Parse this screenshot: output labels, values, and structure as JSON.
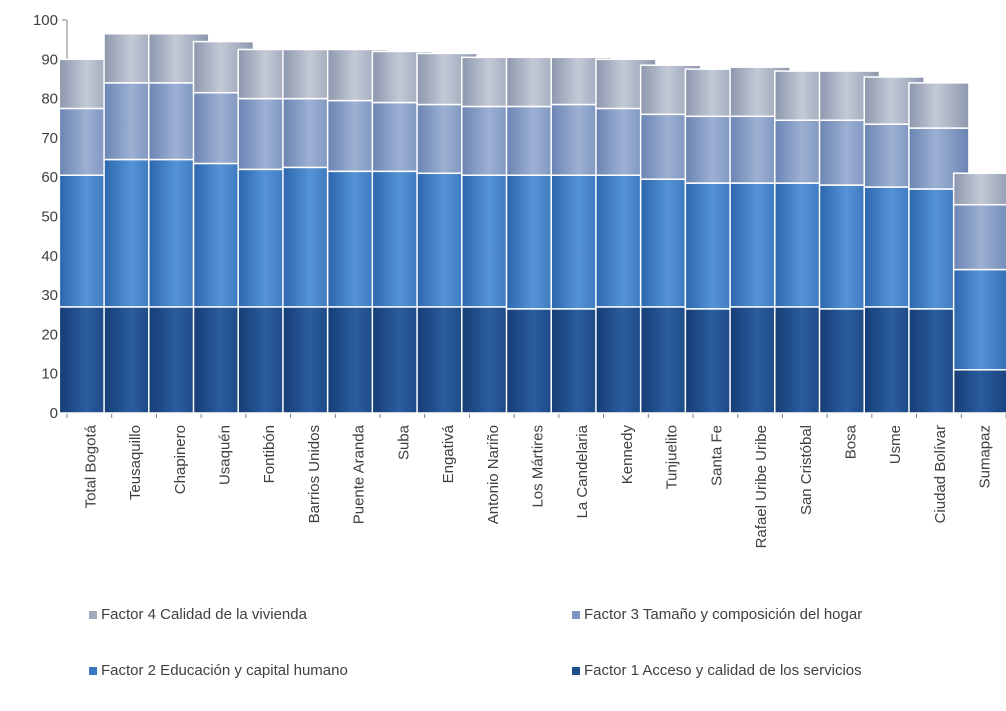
{
  "chart_data": {
    "type": "bar",
    "stacked": true,
    "categories": [
      "Total  Bogotá",
      "Teusaquillo",
      "Chapinero",
      "Usaquén",
      "Fontibón",
      "Barrios Unidos",
      "Puente Aranda",
      "Suba",
      "Engativá",
      "Antonio Nariño",
      "Los Mártires",
      "La Candelaria",
      "Kennedy",
      "Tunjuelito",
      "Santa Fe",
      "Rafael Uribe Uribe",
      "San Cristóbal",
      "Bosa",
      "Usme",
      "Ciudad Bolívar",
      "Sumapaz"
    ],
    "series": [
      {
        "name": "Factor 1 Acceso y calidad de los servicios",
        "color": "#1f4e8c",
        "values": [
          27,
          27,
          27,
          27,
          27,
          27,
          27,
          27,
          27,
          27,
          26.5,
          26.5,
          27,
          27,
          26.5,
          27,
          27,
          26.5,
          27,
          26.5,
          11
        ]
      },
      {
        "name": "Factor 2 Educación y capital humano",
        "color": "#3a78c2",
        "values": [
          33.5,
          37.5,
          37.5,
          36.5,
          35,
          35.5,
          34.5,
          34.5,
          34,
          33.5,
          34,
          34,
          33.5,
          32.5,
          32,
          31.5,
          31.5,
          31.5,
          30.5,
          30.5,
          25.5
        ]
      },
      {
        "name": "Factor 3 Tamaño y composición del hogar",
        "color": "#7f96c0",
        "values": [
          17,
          19.5,
          19.5,
          18,
          18,
          17.5,
          18,
          17.5,
          17.5,
          17.5,
          17.5,
          18,
          17,
          16.5,
          17,
          17,
          16,
          16.5,
          16,
          15.5,
          16.5
        ]
      },
      {
        "name": "Factor 4 Calidad de la vivienda",
        "color": "#a3acbf",
        "values": [
          12.5,
          12.5,
          12.5,
          13,
          12.5,
          12.5,
          13,
          13,
          13,
          12.5,
          12.5,
          12,
          12.5,
          12.5,
          12,
          12.5,
          12.5,
          12.5,
          12,
          11.5,
          8
        ]
      }
    ],
    "ylim": [
      0,
      100
    ],
    "yticks": [
      0,
      10,
      20,
      30,
      40,
      50,
      60,
      70,
      80,
      90,
      100
    ],
    "title": "",
    "xlabel": "",
    "ylabel": "",
    "grid": false,
    "legend_position": "bottom"
  },
  "legend": {
    "items": [
      {
        "label": "Factor 4 Calidad de la vivienda",
        "color": "#a3acbf"
      },
      {
        "label": "Factor 3 Tamaño y composición del hogar",
        "color": "#7f96c0"
      },
      {
        "label": "Factor 2 Educación y capital humano",
        "color": "#3a78c2"
      },
      {
        "label": "Factor 1 Acceso y calidad de los servicios",
        "color": "#1f4e8c"
      }
    ]
  }
}
